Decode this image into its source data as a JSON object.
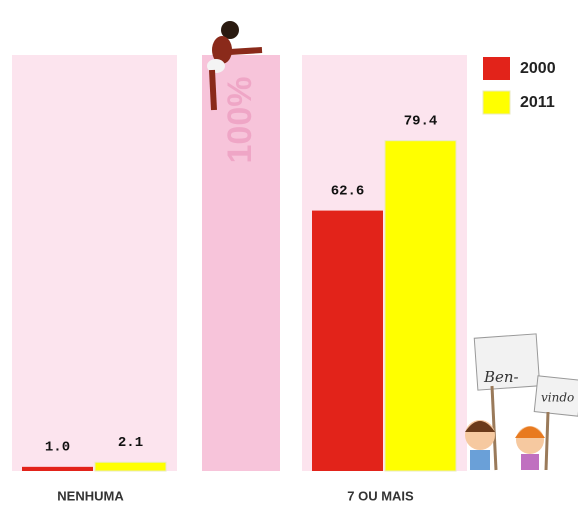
{
  "chart_data": {
    "type": "bar",
    "categories": [
      "NENHUMA",
      "7 OU MAIS"
    ],
    "series": [
      {
        "name": "2000",
        "color": "#e2231a",
        "values": [
          1.0,
          62.6
        ],
        "value_labels": [
          "1.0",
          "62.6"
        ]
      },
      {
        "name": "2011",
        "color": "#ffff00",
        "values": [
          2.1,
          79.4
        ],
        "value_labels": [
          "2.1",
          "79.4"
        ]
      }
    ],
    "reference_bar": {
      "value": 100,
      "label": "100%"
    },
    "annotations": [
      "Ben-",
      "vindo"
    ],
    "ylim": [
      0,
      100
    ],
    "grid": false,
    "legend": "top-right"
  }
}
